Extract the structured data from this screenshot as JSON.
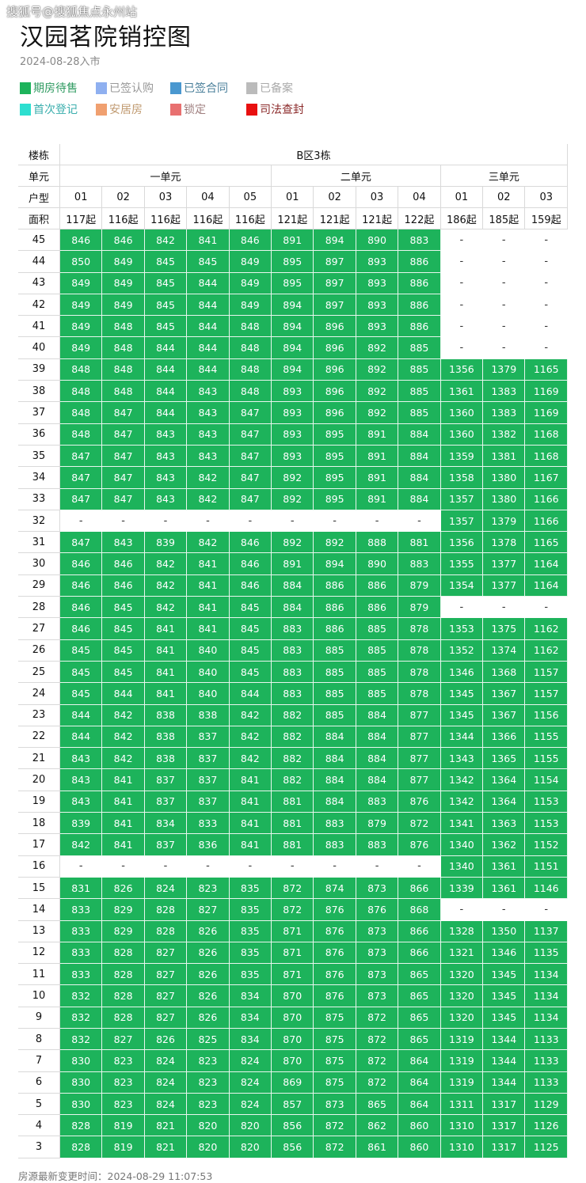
{
  "watermark": "搜狐号@搜狐焦点永州站",
  "title": "汉园茗院销控图",
  "subtitle": "2024-08-28入市",
  "legend": [
    {
      "label": "期房待售",
      "color": "#1db35b",
      "text_color": "#2e9a60"
    },
    {
      "label": "已签认购",
      "color": "#8fb0f0",
      "text_color": "#999999"
    },
    {
      "label": "已签合同",
      "color": "#4a98d0",
      "text_color": "#4a7f9a"
    },
    {
      "label": "已备案",
      "color": "#bbbbbb",
      "text_color": "#aaaaaa"
    },
    {
      "label": "首次登记",
      "color": "#2ddfd0",
      "text_color": "#3aaead"
    },
    {
      "label": "安居房",
      "color": "#f0a070",
      "text_color": "#c09a70"
    },
    {
      "label": "锁定",
      "color": "#e87070",
      "text_color": "#a08080"
    },
    {
      "label": "司法查封",
      "color": "#e81010",
      "text_color": "#8b2a2a"
    }
  ],
  "table": {
    "row_labels": {
      "building": "楼栋",
      "unit": "单元",
      "type": "户型",
      "area": "面积"
    },
    "building": "B区3栋",
    "units": [
      {
        "name": "一单元",
        "span": 5
      },
      {
        "name": "二单元",
        "span": 4
      },
      {
        "name": "三单元",
        "span": 3
      }
    ],
    "types": [
      "01",
      "02",
      "03",
      "04",
      "05",
      "01",
      "02",
      "03",
      "04",
      "01",
      "02",
      "03"
    ],
    "areas": [
      "117起",
      "116起",
      "116起",
      "116起",
      "116起",
      "121起",
      "121起",
      "121起",
      "122起",
      "186起",
      "185起",
      "159起"
    ],
    "rows": [
      {
        "floor": "45",
        "cells": [
          "846",
          "846",
          "842",
          "841",
          "846",
          "891",
          "894",
          "890",
          "883",
          "-",
          "-",
          "-"
        ]
      },
      {
        "floor": "44",
        "cells": [
          "850",
          "849",
          "845",
          "845",
          "849",
          "895",
          "897",
          "893",
          "886",
          "-",
          "-",
          "-"
        ]
      },
      {
        "floor": "43",
        "cells": [
          "849",
          "849",
          "845",
          "844",
          "849",
          "895",
          "897",
          "893",
          "886",
          "-",
          "-",
          "-"
        ]
      },
      {
        "floor": "42",
        "cells": [
          "849",
          "849",
          "845",
          "844",
          "849",
          "894",
          "897",
          "893",
          "886",
          "-",
          "-",
          "-"
        ]
      },
      {
        "floor": "41",
        "cells": [
          "849",
          "848",
          "845",
          "844",
          "848",
          "894",
          "896",
          "893",
          "886",
          "-",
          "-",
          "-"
        ]
      },
      {
        "floor": "40",
        "cells": [
          "849",
          "848",
          "844",
          "844",
          "848",
          "894",
          "896",
          "892",
          "885",
          "-",
          "-",
          "-"
        ]
      },
      {
        "floor": "39",
        "cells": [
          "848",
          "848",
          "844",
          "844",
          "848",
          "894",
          "896",
          "892",
          "885",
          "1356",
          "1379",
          "1165"
        ]
      },
      {
        "floor": "38",
        "cells": [
          "848",
          "848",
          "844",
          "843",
          "848",
          "893",
          "896",
          "892",
          "885",
          "1361",
          "1383",
          "1169"
        ]
      },
      {
        "floor": "37",
        "cells": [
          "848",
          "847",
          "844",
          "843",
          "847",
          "893",
          "896",
          "892",
          "885",
          "1360",
          "1383",
          "1169"
        ]
      },
      {
        "floor": "36",
        "cells": [
          "848",
          "847",
          "843",
          "843",
          "847",
          "893",
          "895",
          "891",
          "884",
          "1360",
          "1382",
          "1168"
        ]
      },
      {
        "floor": "35",
        "cells": [
          "847",
          "847",
          "843",
          "843",
          "847",
          "893",
          "895",
          "891",
          "884",
          "1359",
          "1381",
          "1168"
        ]
      },
      {
        "floor": "34",
        "cells": [
          "847",
          "847",
          "843",
          "842",
          "847",
          "892",
          "895",
          "891",
          "884",
          "1358",
          "1380",
          "1167"
        ]
      },
      {
        "floor": "33",
        "cells": [
          "847",
          "847",
          "843",
          "842",
          "847",
          "892",
          "895",
          "891",
          "884",
          "1357",
          "1380",
          "1166"
        ]
      },
      {
        "floor": "32",
        "cells": [
          "-",
          "-",
          "-",
          "-",
          "-",
          "-",
          "-",
          "-",
          "-",
          "1357",
          "1379",
          "1166"
        ]
      },
      {
        "floor": "31",
        "cells": [
          "847",
          "843",
          "839",
          "842",
          "846",
          "892",
          "892",
          "888",
          "881",
          "1356",
          "1378",
          "1165"
        ]
      },
      {
        "floor": "30",
        "cells": [
          "846",
          "846",
          "842",
          "841",
          "846",
          "891",
          "894",
          "890",
          "883",
          "1355",
          "1377",
          "1164"
        ]
      },
      {
        "floor": "29",
        "cells": [
          "846",
          "846",
          "842",
          "841",
          "846",
          "884",
          "886",
          "886",
          "879",
          "1354",
          "1377",
          "1164"
        ]
      },
      {
        "floor": "28",
        "cells": [
          "846",
          "845",
          "842",
          "841",
          "845",
          "884",
          "886",
          "886",
          "879",
          "-",
          "-",
          "-"
        ]
      },
      {
        "floor": "27",
        "cells": [
          "846",
          "845",
          "841",
          "841",
          "845",
          "883",
          "886",
          "885",
          "878",
          "1353",
          "1375",
          "1162"
        ]
      },
      {
        "floor": "26",
        "cells": [
          "845",
          "845",
          "841",
          "840",
          "845",
          "883",
          "885",
          "885",
          "878",
          "1352",
          "1374",
          "1162"
        ]
      },
      {
        "floor": "25",
        "cells": [
          "845",
          "845",
          "841",
          "840",
          "845",
          "883",
          "885",
          "885",
          "878",
          "1346",
          "1368",
          "1157"
        ]
      },
      {
        "floor": "24",
        "cells": [
          "845",
          "844",
          "841",
          "840",
          "844",
          "883",
          "885",
          "885",
          "878",
          "1345",
          "1367",
          "1157"
        ]
      },
      {
        "floor": "23",
        "cells": [
          "844",
          "842",
          "838",
          "838",
          "842",
          "882",
          "885",
          "884",
          "877",
          "1345",
          "1367",
          "1156"
        ]
      },
      {
        "floor": "22",
        "cells": [
          "844",
          "842",
          "838",
          "837",
          "842",
          "882",
          "884",
          "884",
          "877",
          "1344",
          "1366",
          "1155"
        ]
      },
      {
        "floor": "21",
        "cells": [
          "843",
          "842",
          "838",
          "837",
          "842",
          "882",
          "884",
          "884",
          "877",
          "1343",
          "1365",
          "1155"
        ]
      },
      {
        "floor": "20",
        "cells": [
          "843",
          "841",
          "837",
          "837",
          "841",
          "882",
          "884",
          "884",
          "877",
          "1342",
          "1364",
          "1154"
        ]
      },
      {
        "floor": "19",
        "cells": [
          "843",
          "841",
          "837",
          "837",
          "841",
          "881",
          "884",
          "883",
          "876",
          "1342",
          "1364",
          "1153"
        ]
      },
      {
        "floor": "18",
        "cells": [
          "839",
          "841",
          "834",
          "833",
          "841",
          "881",
          "883",
          "879",
          "872",
          "1341",
          "1363",
          "1153"
        ]
      },
      {
        "floor": "17",
        "cells": [
          "842",
          "841",
          "837",
          "836",
          "841",
          "881",
          "883",
          "883",
          "876",
          "1340",
          "1362",
          "1152"
        ]
      },
      {
        "floor": "16",
        "cells": [
          "-",
          "-",
          "-",
          "-",
          "-",
          "-",
          "-",
          "-",
          "-",
          "1340",
          "1361",
          "1151"
        ]
      },
      {
        "floor": "15",
        "cells": [
          "831",
          "826",
          "824",
          "823",
          "835",
          "872",
          "874",
          "873",
          "866",
          "1339",
          "1361",
          "1146"
        ]
      },
      {
        "floor": "14",
        "cells": [
          "833",
          "829",
          "828",
          "827",
          "835",
          "872",
          "876",
          "876",
          "868",
          "-",
          "-",
          "-"
        ]
      },
      {
        "floor": "13",
        "cells": [
          "833",
          "829",
          "828",
          "826",
          "835",
          "871",
          "876",
          "873",
          "866",
          "1328",
          "1350",
          "1137"
        ]
      },
      {
        "floor": "12",
        "cells": [
          "833",
          "828",
          "827",
          "826",
          "835",
          "871",
          "876",
          "873",
          "866",
          "1321",
          "1346",
          "1135"
        ]
      },
      {
        "floor": "11",
        "cells": [
          "833",
          "828",
          "827",
          "826",
          "835",
          "871",
          "876",
          "873",
          "865",
          "1320",
          "1345",
          "1134"
        ]
      },
      {
        "floor": "10",
        "cells": [
          "832",
          "828",
          "827",
          "826",
          "834",
          "870",
          "876",
          "873",
          "865",
          "1320",
          "1345",
          "1134"
        ]
      },
      {
        "floor": "9",
        "cells": [
          "832",
          "828",
          "827",
          "826",
          "834",
          "870",
          "875",
          "872",
          "865",
          "1320",
          "1345",
          "1134"
        ]
      },
      {
        "floor": "8",
        "cells": [
          "832",
          "827",
          "826",
          "825",
          "834",
          "870",
          "875",
          "872",
          "865",
          "1319",
          "1344",
          "1133"
        ]
      },
      {
        "floor": "7",
        "cells": [
          "830",
          "823",
          "824",
          "823",
          "824",
          "870",
          "875",
          "872",
          "864",
          "1319",
          "1344",
          "1133"
        ]
      },
      {
        "floor": "6",
        "cells": [
          "830",
          "823",
          "824",
          "823",
          "824",
          "869",
          "875",
          "872",
          "864",
          "1319",
          "1344",
          "1133"
        ]
      },
      {
        "floor": "5",
        "cells": [
          "830",
          "823",
          "824",
          "823",
          "824",
          "857",
          "873",
          "865",
          "864",
          "1311",
          "1317",
          "1129"
        ]
      },
      {
        "floor": "4",
        "cells": [
          "828",
          "819",
          "821",
          "820",
          "820",
          "856",
          "872",
          "862",
          "860",
          "1310",
          "1317",
          "1126"
        ]
      },
      {
        "floor": "3",
        "cells": [
          "828",
          "819",
          "821",
          "820",
          "820",
          "856",
          "872",
          "861",
          "860",
          "1310",
          "1317",
          "1125"
        ]
      }
    ]
  },
  "footer": {
    "label": "房源最新变更时间：",
    "timestamp": "2024-08-29 11:07:53"
  }
}
